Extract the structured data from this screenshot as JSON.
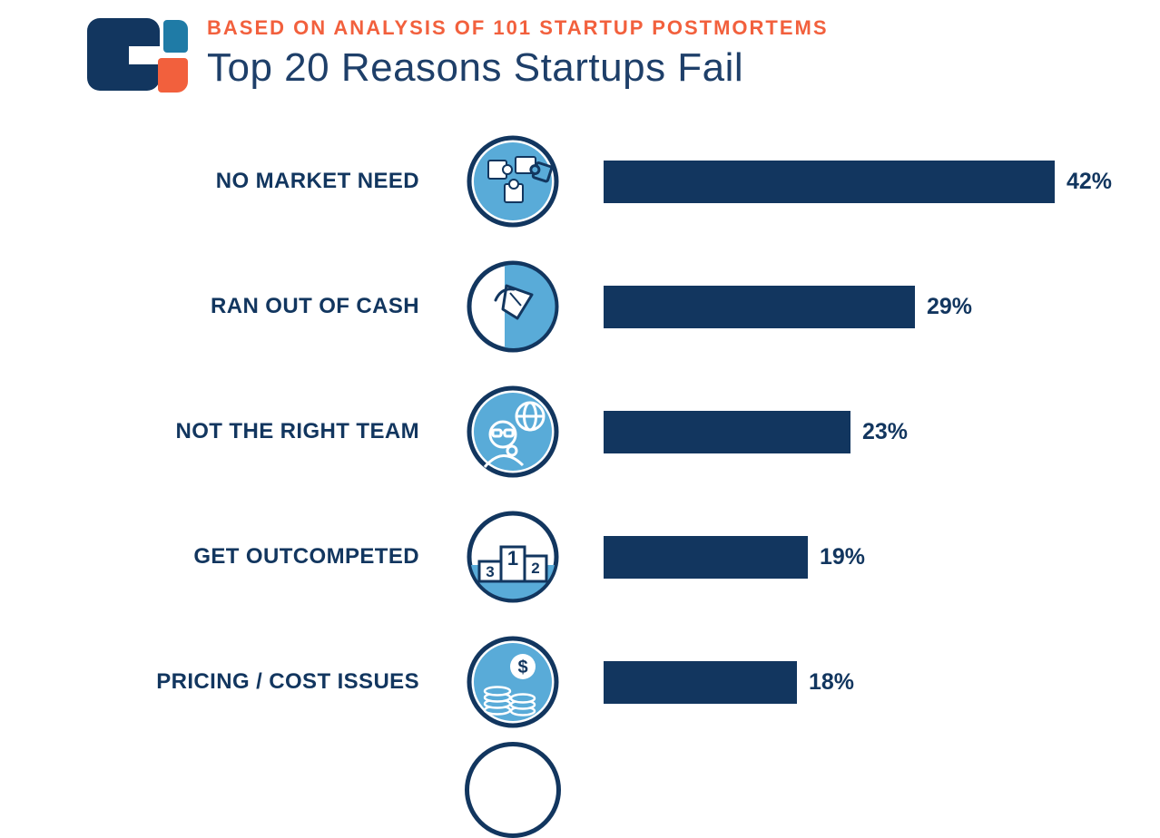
{
  "header": {
    "eyebrow": "BASED ON ANALYSIS OF 101 STARTUP POSTMORTEMS",
    "title": "Top 20 Reasons Startups Fail"
  },
  "colors": {
    "navy": "#12365f",
    "light_blue": "#59abd8",
    "orange": "#f2603d",
    "teal": "#1f7ba6",
    "background": "#ffffff"
  },
  "chart_data": {
    "type": "bar",
    "orientation": "horizontal",
    "title": "Top 20 Reasons Startups Fail",
    "subtitle": "BASED ON ANALYSIS OF 101 STARTUP POSTMORTEMS",
    "sample_size": 101,
    "unit": "%",
    "rows_visible": 5,
    "categories": [
      "NO MARKET NEED",
      "RAN OUT OF CASH",
      "NOT THE RIGHT TEAM",
      "GET OUTCOMPETED",
      "PRICING / COST ISSUES"
    ],
    "values": [
      42,
      29,
      23,
      19,
      18
    ],
    "value_labels": [
      "42%",
      "29%",
      "23%",
      "19%",
      "18%"
    ],
    "icons": [
      "market-puzzle-globe-icon",
      "empty-pocket-icon",
      "team-person-globe-icon",
      "podium-icon",
      "coins-dollar-icon"
    ]
  }
}
